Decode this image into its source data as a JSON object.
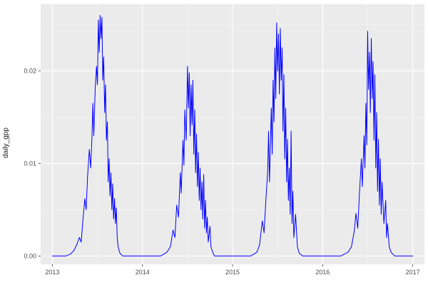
{
  "chart_data": {
    "type": "line",
    "title": "",
    "xlabel": "",
    "ylabel": "daily_gpp",
    "legend": "none",
    "grid": "on",
    "xlim": [
      2012.87,
      2017.13
    ],
    "ylim": [
      -0.0009,
      0.0272
    ],
    "x_ticks": [
      2013,
      2014,
      2015,
      2016,
      2017
    ],
    "x_tick_labels": [
      "2013",
      "2014",
      "2015",
      "2016",
      "2017"
    ],
    "x_minor_ticks": [
      2013.5,
      2014.5,
      2015.5,
      2016.5
    ],
    "y_ticks": [
      0,
      0.01,
      0.02
    ],
    "y_tick_labels": [
      "0.00",
      "0.01",
      "0.02"
    ],
    "y_minor_ticks": [
      0.005,
      0.015,
      0.025
    ],
    "theme": {
      "panel_bg": "#EBEBEB",
      "grid_major": "#FFFFFF",
      "grid_minor": "#F5F5F5",
      "axis_text_color": "#4D4D4D",
      "tick_mark_color": "#333333",
      "figure_bg": "#FFFFFF"
    },
    "series": [
      {
        "name": "daily_gpp",
        "color": "#0000FF",
        "points": [
          [
            2013.0,
            0
          ],
          [
            2013.08,
            0
          ],
          [
            2013.15,
            0
          ],
          [
            2013.2,
            0.0002
          ],
          [
            2013.24,
            0.0006
          ],
          [
            2013.27,
            0.0012
          ],
          [
            2013.3,
            0.002
          ],
          [
            2013.32,
            0.0015
          ],
          [
            2013.34,
            0.004
          ],
          [
            2013.36,
            0.0062
          ],
          [
            2013.375,
            0.005
          ],
          [
            2013.39,
            0.0085
          ],
          [
            2013.41,
            0.0115
          ],
          [
            2013.425,
            0.0095
          ],
          [
            2013.44,
            0.013
          ],
          [
            2013.45,
            0.0165
          ],
          [
            2013.46,
            0.013
          ],
          [
            2013.475,
            0.018
          ],
          [
            2013.49,
            0.0205
          ],
          [
            2013.5,
            0.0185
          ],
          [
            2013.51,
            0.0255
          ],
          [
            2013.52,
            0.022
          ],
          [
            2013.53,
            0.026
          ],
          [
            2013.54,
            0.0235
          ],
          [
            2013.55,
            0.0258
          ],
          [
            2013.56,
            0.019
          ],
          [
            2013.57,
            0.0215
          ],
          [
            2013.58,
            0.0155
          ],
          [
            2013.59,
            0.0185
          ],
          [
            2013.6,
            0.0125
          ],
          [
            2013.61,
            0.0145
          ],
          [
            2013.62,
            0.008
          ],
          [
            2013.63,
            0.0105
          ],
          [
            2013.64,
            0.0065
          ],
          [
            2013.65,
            0.009
          ],
          [
            2013.66,
            0.005
          ],
          [
            2013.67,
            0.0078
          ],
          [
            2013.68,
            0.004
          ],
          [
            2013.69,
            0.0062
          ],
          [
            2013.7,
            0.0035
          ],
          [
            2013.71,
            0.0052
          ],
          [
            2013.72,
            0.002
          ],
          [
            2013.73,
            0.001
          ],
          [
            2013.75,
            0.0003
          ],
          [
            2013.78,
            0
          ],
          [
            2013.9,
            0
          ],
          [
            2014.0,
            0
          ],
          [
            2014.1,
            0
          ],
          [
            2014.2,
            0
          ],
          [
            2014.27,
            0.0004
          ],
          [
            2014.31,
            0.001
          ],
          [
            2014.34,
            0.0028
          ],
          [
            2014.36,
            0.002
          ],
          [
            2014.38,
            0.0055
          ],
          [
            2014.4,
            0.0042
          ],
          [
            2014.42,
            0.009
          ],
          [
            2014.43,
            0.0068
          ],
          [
            2014.45,
            0.0125
          ],
          [
            2014.46,
            0.0098
          ],
          [
            2014.47,
            0.0158
          ],
          [
            2014.485,
            0.0125
          ],
          [
            2014.5,
            0.0205
          ],
          [
            2014.51,
            0.016
          ],
          [
            2014.52,
            0.0198
          ],
          [
            2014.53,
            0.013
          ],
          [
            2014.54,
            0.0185
          ],
          [
            2014.55,
            0.0142
          ],
          [
            2014.56,
            0.019
          ],
          [
            2014.57,
            0.011
          ],
          [
            2014.58,
            0.0158
          ],
          [
            2014.59,
            0.009
          ],
          [
            2014.6,
            0.0132
          ],
          [
            2014.61,
            0.0075
          ],
          [
            2014.62,
            0.0112
          ],
          [
            2014.63,
            0.006
          ],
          [
            2014.64,
            0.0095
          ],
          [
            2014.65,
            0.005
          ],
          [
            2014.66,
            0.008
          ],
          [
            2014.67,
            0.004
          ],
          [
            2014.68,
            0.0088
          ],
          [
            2014.69,
            0.003
          ],
          [
            2014.7,
            0.006
          ],
          [
            2014.71,
            0.0025
          ],
          [
            2014.72,
            0.0042
          ],
          [
            2014.73,
            0.0015
          ],
          [
            2014.75,
            0.0032
          ],
          [
            2014.76,
            0.001
          ],
          [
            2014.78,
            0.0004
          ],
          [
            2014.8,
            0
          ],
          [
            2014.9,
            0
          ],
          [
            2015.0,
            0
          ],
          [
            2015.1,
            0
          ],
          [
            2015.2,
            0
          ],
          [
            2015.27,
            0.0004
          ],
          [
            2015.3,
            0.0012
          ],
          [
            2015.33,
            0.0038
          ],
          [
            2015.35,
            0.0025
          ],
          [
            2015.37,
            0.006
          ],
          [
            2015.39,
            0.0092
          ],
          [
            2015.4,
            0.0135
          ],
          [
            2015.41,
            0.008
          ],
          [
            2015.43,
            0.016
          ],
          [
            2015.44,
            0.011
          ],
          [
            2015.45,
            0.019
          ],
          [
            2015.46,
            0.0145
          ],
          [
            2015.47,
            0.0225
          ],
          [
            2015.48,
            0.017
          ],
          [
            2015.49,
            0.0252
          ],
          [
            2015.5,
            0.02
          ],
          [
            2015.51,
            0.024
          ],
          [
            2015.52,
            0.0175
          ],
          [
            2015.53,
            0.0246
          ],
          [
            2015.54,
            0.019
          ],
          [
            2015.55,
            0.0225
          ],
          [
            2015.56,
            0.0135
          ],
          [
            2015.57,
            0.0196
          ],
          [
            2015.58,
            0.0105
          ],
          [
            2015.59,
            0.016
          ],
          [
            2015.6,
            0.008
          ],
          [
            2015.61,
            0.0126
          ],
          [
            2015.62,
            0.006
          ],
          [
            2015.63,
            0.0095
          ],
          [
            2015.64,
            0.0045
          ],
          [
            2015.65,
            0.0135
          ],
          [
            2015.66,
            0.0035
          ],
          [
            2015.67,
            0.007
          ],
          [
            2015.68,
            0.002
          ],
          [
            2015.7,
            0.0045
          ],
          [
            2015.72,
            0.001
          ],
          [
            2015.74,
            0.0003
          ],
          [
            2015.78,
            0
          ],
          [
            2015.9,
            0
          ],
          [
            2016.0,
            0
          ],
          [
            2016.1,
            0
          ],
          [
            2016.2,
            0
          ],
          [
            2016.28,
            0.0004
          ],
          [
            2016.32,
            0.001
          ],
          [
            2016.35,
            0.0026
          ],
          [
            2016.37,
            0.0046
          ],
          [
            2016.39,
            0.003
          ],
          [
            2016.41,
            0.007
          ],
          [
            2016.43,
            0.0105
          ],
          [
            2016.44,
            0.0075
          ],
          [
            2016.46,
            0.013
          ],
          [
            2016.47,
            0.0095
          ],
          [
            2016.48,
            0.0165
          ],
          [
            2016.49,
            0.012
          ],
          [
            2016.5,
            0.0243
          ],
          [
            2016.51,
            0.018
          ],
          [
            2016.52,
            0.022
          ],
          [
            2016.53,
            0.0155
          ],
          [
            2016.54,
            0.0235
          ],
          [
            2016.55,
            0.017
          ],
          [
            2016.56,
            0.021
          ],
          [
            2016.57,
            0.0125
          ],
          [
            2016.58,
            0.0196
          ],
          [
            2016.59,
            0.0095
          ],
          [
            2016.6,
            0.0155
          ],
          [
            2016.61,
            0.007
          ],
          [
            2016.62,
            0.0126
          ],
          [
            2016.63,
            0.0055
          ],
          [
            2016.64,
            0.0105
          ],
          [
            2016.65,
            0.0045
          ],
          [
            2016.66,
            0.008
          ],
          [
            2016.68,
            0.0035
          ],
          [
            2016.7,
            0.006
          ],
          [
            2016.71,
            0.002
          ],
          [
            2016.72,
            0.0035
          ],
          [
            2016.74,
            0.001
          ],
          [
            2016.76,
            0.0004
          ],
          [
            2016.8,
            0
          ],
          [
            2016.9,
            0
          ],
          [
            2017.0,
            0
          ]
        ]
      }
    ]
  }
}
